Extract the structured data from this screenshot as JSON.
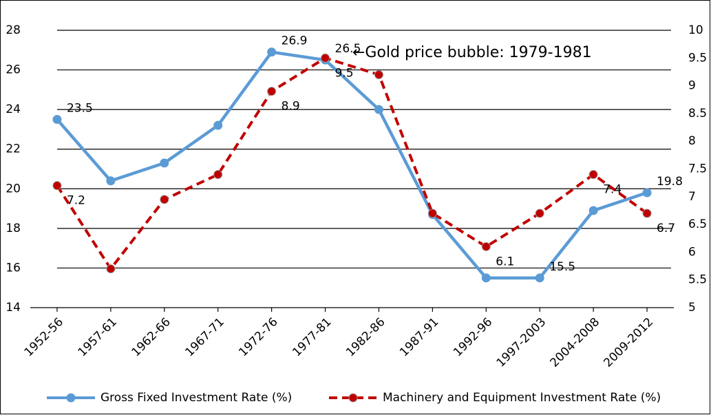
{
  "chart_data": {
    "type": "line",
    "categories": [
      "1952-56",
      "1957-61",
      "1962-66",
      "1967-71",
      "1972-76",
      "1977-81",
      "1982-86",
      "1987-91",
      "1992-96",
      "1997-2003",
      "2004-2008",
      "2009-2012"
    ],
    "series": [
      {
        "name": "Gross Fixed Investment Rate (%)",
        "color": "#5b9bd5",
        "axis": "y",
        "values": [
          23.5,
          20.4,
          21.3,
          23.2,
          26.9,
          26.5,
          24.0,
          18.7,
          15.5,
          15.5,
          18.9,
          19.8
        ],
        "value_labels": [
          "23.5",
          null,
          null,
          null,
          "26.9",
          "26.5",
          null,
          null,
          null,
          "15.5",
          null,
          "19.8"
        ]
      },
      {
        "name": "Machinery and Equipment Investment Rate (%)",
        "color": "#c00000",
        "axis": "y2",
        "values": [
          7.2,
          5.7,
          6.95,
          7.4,
          8.9,
          9.5,
          9.2,
          6.7,
          6.1,
          6.7,
          7.4,
          6.7
        ],
        "value_labels": [
          "7.2",
          null,
          null,
          null,
          "8.9",
          "9.5",
          null,
          null,
          "6.1",
          null,
          "7.4",
          "6.7"
        ]
      }
    ],
    "ylim": [
      14,
      28
    ],
    "yticks": [
      14,
      16,
      18,
      20,
      22,
      24,
      26,
      28
    ],
    "y2lim": [
      5,
      10
    ],
    "y2ticks": [
      5,
      5.5,
      6,
      6.5,
      7,
      7.5,
      8,
      8.5,
      9,
      9.5,
      10
    ],
    "grid": true,
    "annotation": "←Gold price bubble: 1979-1981"
  }
}
